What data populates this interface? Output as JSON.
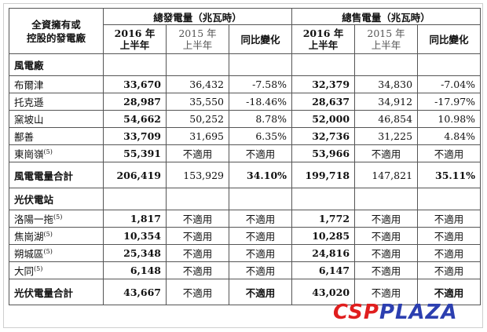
{
  "header": {
    "corner": "全資擁有或\n控股的發電廠",
    "group1": "總發電量（兆瓦時）",
    "group2": "總售電量（兆瓦時）",
    "col_2016": "2016 年\n上半年",
    "col_2015": "2015 年\n上半年",
    "col_change": "同比變化"
  },
  "sections": {
    "wind_title": "風電廠",
    "solar_title": "光伏電站"
  },
  "wind_rows": [
    {
      "name": "布爾津",
      "sup": "",
      "gen16": "33,670",
      "gen15": "36,432",
      "genchg": "-7.58%",
      "sale16": "32,379",
      "sale15": "34,830",
      "salechg": "-7.04%"
    },
    {
      "name": "托克遜",
      "sup": "",
      "gen16": "28,987",
      "gen15": "35,550",
      "genchg": "-18.46%",
      "sale16": "28,637",
      "sale15": "34,912",
      "salechg": "-17.97%"
    },
    {
      "name": "窯坡山",
      "sup": "",
      "gen16": "54,662",
      "gen15": "50,252",
      "genchg": "8.78%",
      "sale16": "52,000",
      "sale15": "46,854",
      "salechg": "10.98%"
    },
    {
      "name": "鄯善",
      "sup": "",
      "gen16": "33,709",
      "gen15": "31,695",
      "genchg": "6.35%",
      "sale16": "32,736",
      "sale15": "31,225",
      "salechg": "4.84%"
    },
    {
      "name": "東崗嶺",
      "sup": "(5)",
      "gen16": "55,391",
      "gen15": "不適用",
      "genchg": "不適用",
      "sale16": "53,966",
      "sale15": "不適用",
      "salechg": "不適用"
    }
  ],
  "wind_total": {
    "name": "風電電量合計",
    "gen16": "206,419",
    "gen15": "153,929",
    "genchg": "34.10%",
    "sale16": "199,718",
    "sale15": "147,821",
    "salechg": "35.11%"
  },
  "solar_rows": [
    {
      "name": "洛陽一拖",
      "sup": "(5)",
      "gen16": "1,817",
      "gen15": "不適用",
      "genchg": "不適用",
      "sale16": "1,772",
      "sale15": "不適用",
      "salechg": "不適用"
    },
    {
      "name": "焦崗湖",
      "sup": "(5)",
      "gen16": "10,354",
      "gen15": "不適用",
      "genchg": "不適用",
      "sale16": "10,285",
      "sale15": "不適用",
      "salechg": "不適用"
    },
    {
      "name": "朔城區",
      "sup": "(5)",
      "gen16": "25,348",
      "gen15": "不適用",
      "genchg": "不適用",
      "sale16": "24,816",
      "sale15": "不適用",
      "salechg": "不適用"
    },
    {
      "name": "大同",
      "sup": "(5)",
      "gen16": "6,148",
      "gen15": "不適用",
      "genchg": "不適用",
      "sale16": "6,147",
      "sale15": "不適用",
      "salechg": "不適用"
    }
  ],
  "solar_total": {
    "name": "光伏電量合計",
    "gen16": "43,667",
    "gen15": "不適用",
    "genchg": "不適用",
    "sale16": "43,020",
    "sale15": "不適用",
    "salechg": "不適用"
  },
  "watermark": {
    "part1": "CSP",
    "part2": "PLAZA"
  }
}
